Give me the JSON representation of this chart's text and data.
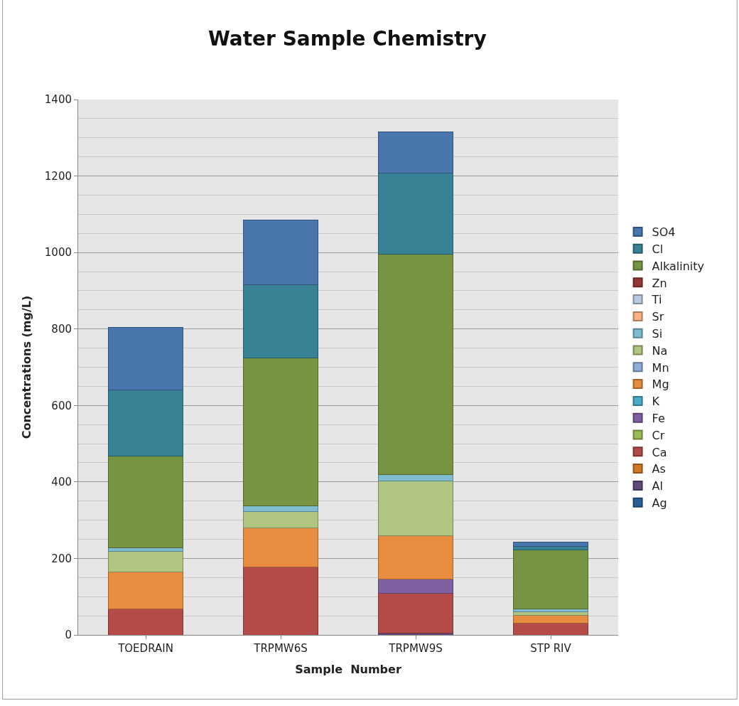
{
  "chart_data": {
    "type": "bar",
    "stacked": true,
    "title": "Water Sample Chemistry",
    "xlabel": "Sample  Number",
    "ylabel": "Concentrations (mg/L)",
    "categories": [
      "TOEDRAIN",
      "TRPMW6S",
      "TRPMW9S",
      "STP RIV"
    ],
    "ylim": [
      0,
      1400
    ],
    "yticks": [
      0,
      200,
      400,
      600,
      800,
      1000,
      1200,
      1400
    ],
    "grid": "y",
    "legend": "right",
    "series": [
      {
        "name": "Ag",
        "color": "#2c5d98",
        "values": [
          null,
          null,
          null,
          null
        ]
      },
      {
        "name": "Al",
        "color": "#604a7b",
        "values": [
          null,
          null,
          5,
          null
        ]
      },
      {
        "name": "As",
        "color": "#d47828",
        "values": [
          null,
          null,
          null,
          null
        ]
      },
      {
        "name": "Ca",
        "color": "#b54b48",
        "values": [
          67,
          178,
          103,
          30
        ]
      },
      {
        "name": "Cr",
        "color": "#9bbb59",
        "values": [
          null,
          null,
          null,
          null
        ]
      },
      {
        "name": "Fe",
        "color": "#7f60a0",
        "values": [
          null,
          null,
          38,
          null
        ]
      },
      {
        "name": "K",
        "color": "#4bacc6",
        "values": [
          null,
          null,
          null,
          null
        ]
      },
      {
        "name": "Mg",
        "color": "#e88d3f",
        "values": [
          98,
          102,
          114,
          22
        ]
      },
      {
        "name": "Mn",
        "color": "#8eaed8",
        "values": [
          null,
          null,
          null,
          null
        ]
      },
      {
        "name": "Na",
        "color": "#afc581",
        "values": [
          53,
          42,
          143,
          8
        ]
      },
      {
        "name": "Si",
        "color": "#7fbcd0",
        "values": [
          10,
          15,
          17,
          8
        ]
      },
      {
        "name": "Sr",
        "color": "#fab283",
        "values": [
          null,
          null,
          null,
          null
        ]
      },
      {
        "name": "Ti",
        "color": "#b9c9e0",
        "values": [
          null,
          null,
          null,
          null
        ]
      },
      {
        "name": "Zn",
        "color": "#953735",
        "values": [
          null,
          null,
          null,
          null
        ]
      },
      {
        "name": "Alkalinity",
        "color": "#779442",
        "values": [
          239,
          388,
          575,
          154
        ]
      },
      {
        "name": "Cl",
        "color": "#378395",
        "values": [
          173,
          190,
          213,
          10
        ]
      },
      {
        "name": "SO4",
        "color": "#4a76ae",
        "values": [
          165,
          170,
          107,
          11
        ]
      }
    ]
  }
}
